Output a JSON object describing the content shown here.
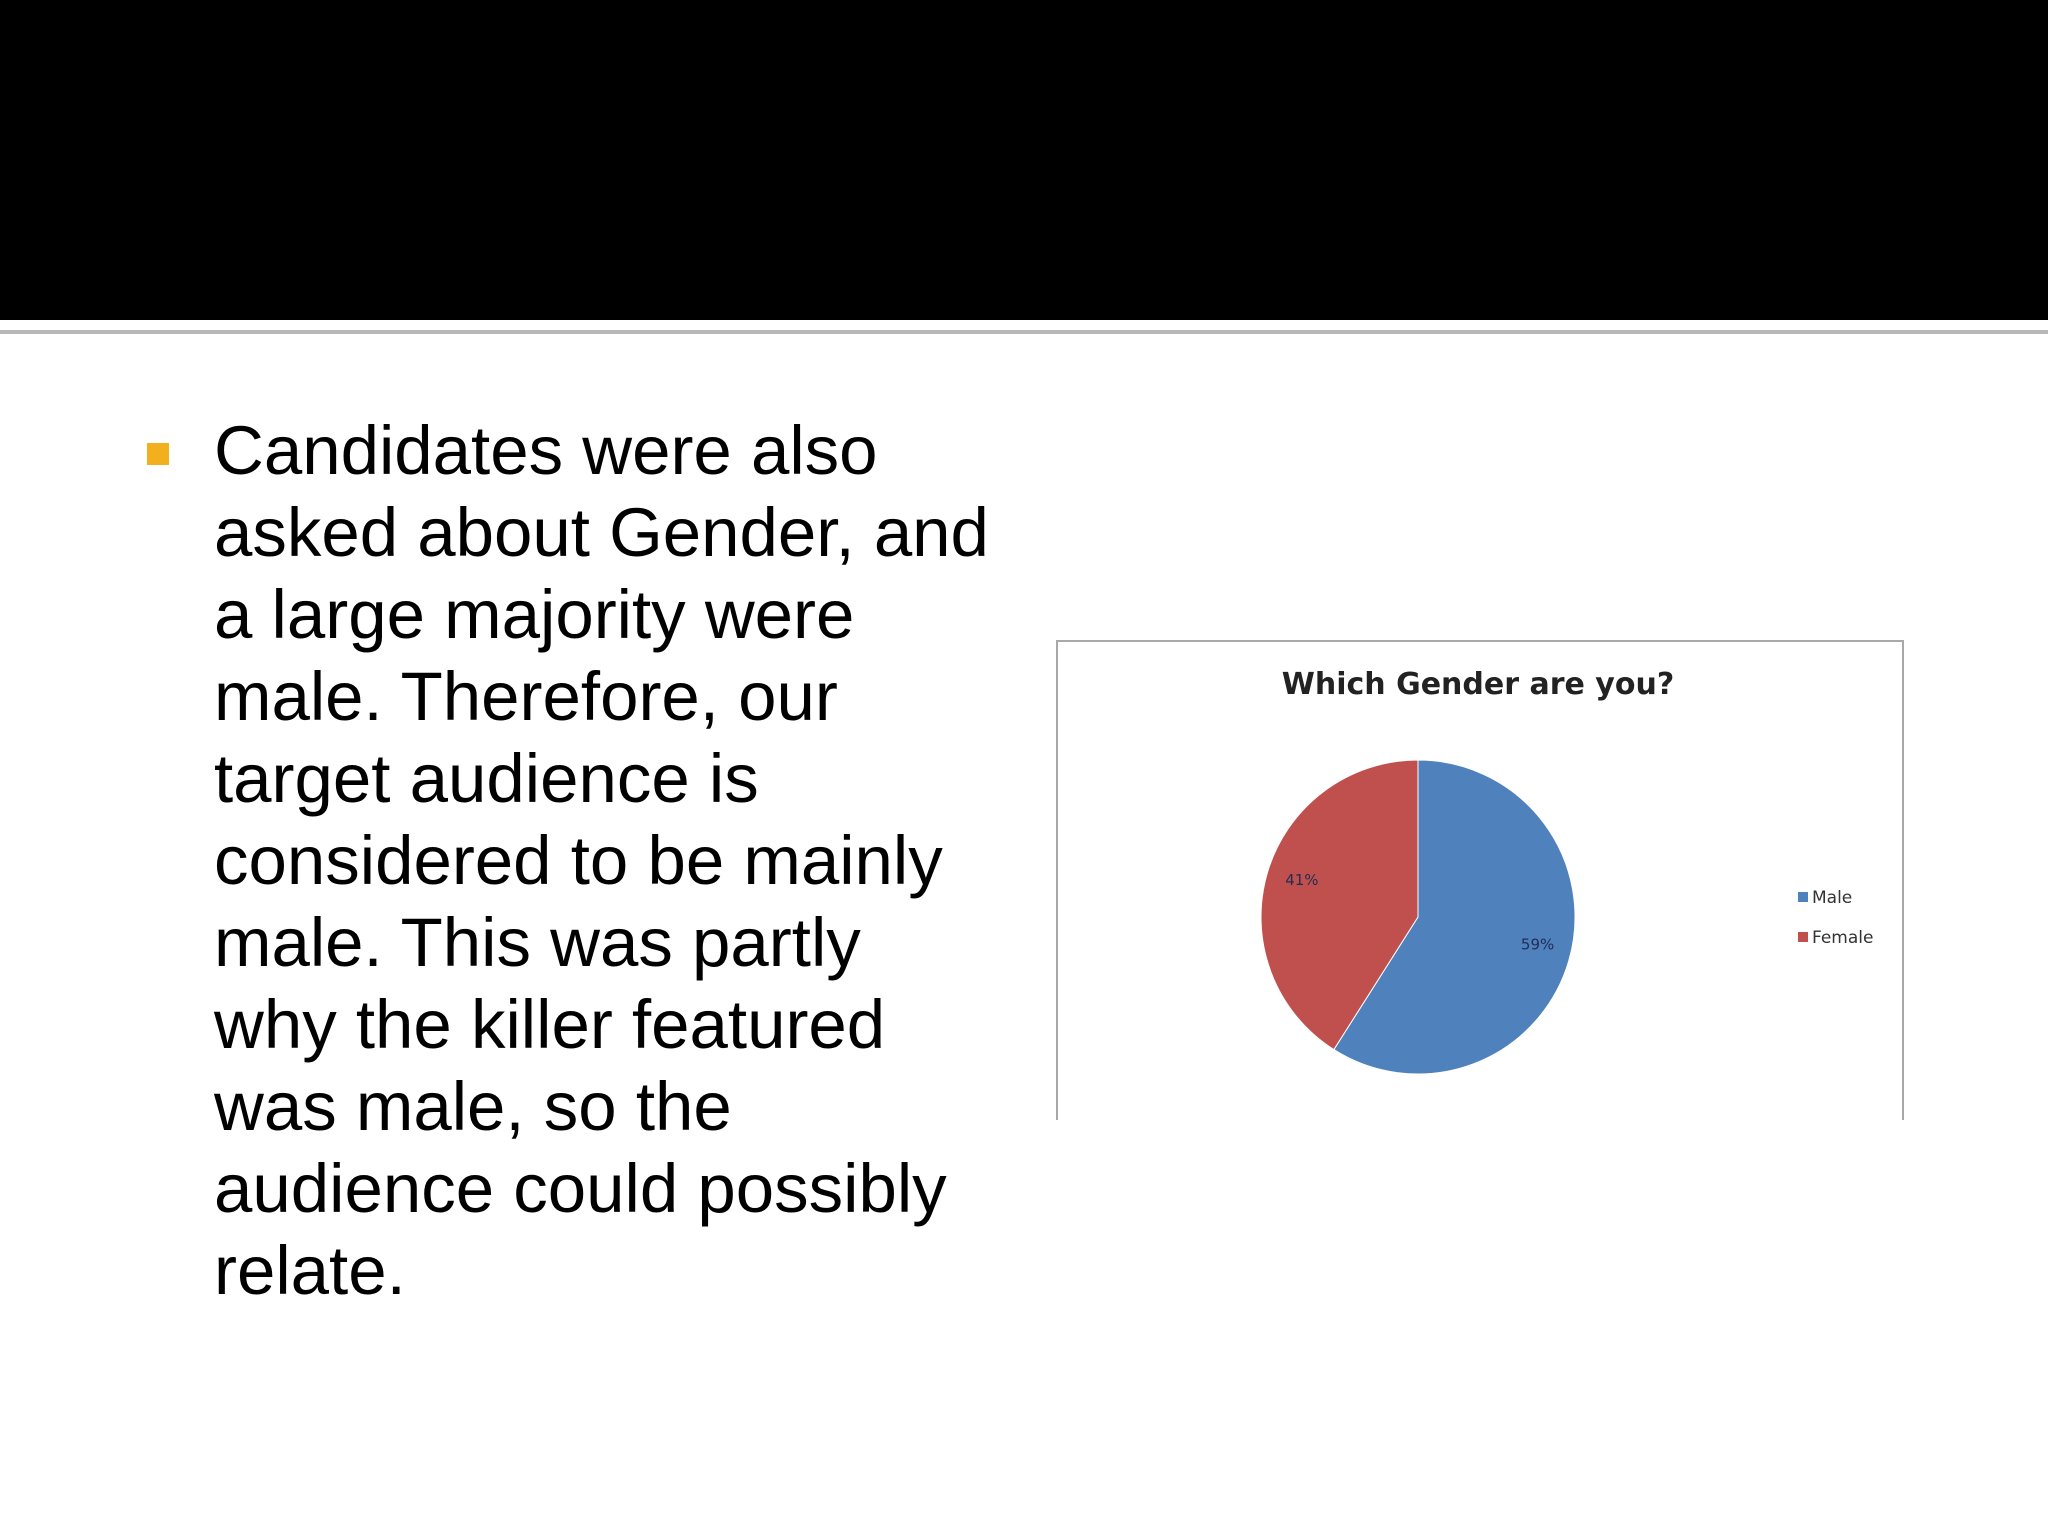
{
  "slide": {
    "bullet_text": "Candidates were also asked about Gender, and a large majority were male. Therefore, our target audience is considered to be mainly male. This was partly why the killer featured was male, so the audience could possibly relate.",
    "colors": {
      "title_band": "#000000",
      "bullet": "#f2b01e",
      "male": "#4f81bd",
      "female": "#c0504d"
    }
  },
  "chart_data": {
    "type": "pie",
    "title": "Which Gender are you?",
    "categories": [
      "Male",
      "Female"
    ],
    "values": [
      59,
      41
    ],
    "data_labels": [
      "59%",
      "41%"
    ],
    "colors": [
      "#4f81bd",
      "#c0504d"
    ],
    "legend": {
      "placement": "right",
      "entries": [
        "Male",
        "Female"
      ]
    }
  }
}
